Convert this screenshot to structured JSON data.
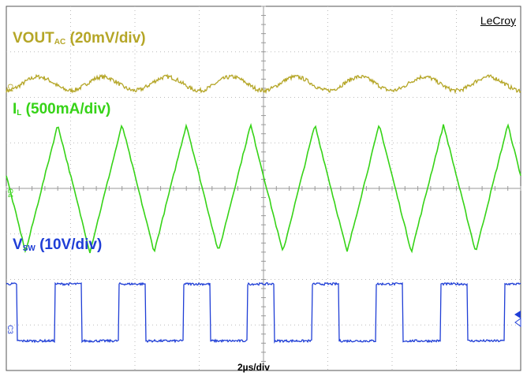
{
  "brand": "LeCroy",
  "timebase_label": "2µs/div",
  "channels": {
    "vout": {
      "label_main": "VOUT",
      "label_sub": "AC",
      "label_scale": " (20mV/div)",
      "color": "#b5a627",
      "marker": "C1"
    },
    "il": {
      "label_main": "I",
      "label_sub": "L",
      "label_scale": " (500mA/div)",
      "color": "#36d317",
      "marker": "C4"
    },
    "vsw": {
      "label_main": "V",
      "label_sub": "SW",
      "label_scale": " (10V/div)",
      "color": "#1f3ed6",
      "marker": "C3"
    }
  },
  "chart_data": {
    "type": "line",
    "xlabel": "2µs/div",
    "x_divisions": 8,
    "y_divisions": 8,
    "grid": true,
    "series": [
      {
        "name": "VOUT AC (20mV/div)",
        "waveform": "sine",
        "periods": 8,
        "center_div": 6.3,
        "amplitude_div": 0.15,
        "color": "#b5a627"
      },
      {
        "name": "IL (500mA/div)",
        "waveform": "triangle",
        "periods": 8,
        "center_div": 4.0,
        "amplitude_div": 1.4,
        "color": "#36d317"
      },
      {
        "name": "VSW (10V/div)",
        "waveform": "square",
        "periods": 8,
        "high_div": 1.9,
        "low_div": 0.65,
        "duty": 0.42,
        "color": "#1f3ed6"
      }
    ]
  }
}
